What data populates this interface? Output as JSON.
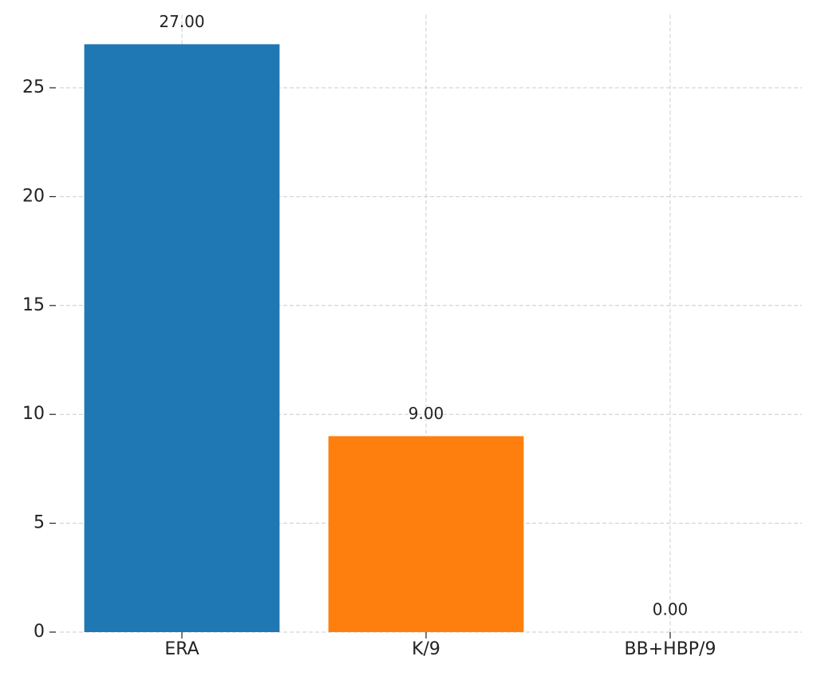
{
  "chart_data": {
    "type": "bar",
    "categories": [
      "ERA",
      "K/9",
      "BB+HBP/9"
    ],
    "values": [
      27,
      9,
      0
    ],
    "value_labels": [
      "27.00",
      "9.00",
      "0.00"
    ],
    "colors": [
      "#1f77b4",
      "#ff7f0e",
      "#2ca02c"
    ],
    "ylim": [
      0,
      28.35
    ],
    "yticks": [
      0,
      5,
      10,
      15,
      20,
      25
    ],
    "grid": true
  }
}
